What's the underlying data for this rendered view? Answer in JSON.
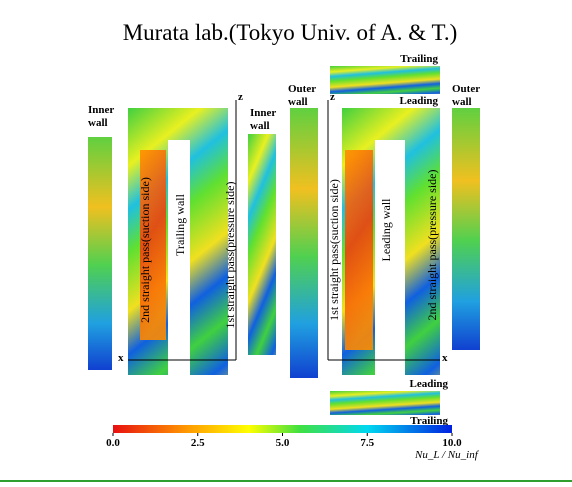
{
  "title": "Murata lab.(Tokyo Univ. of A. & T.)",
  "trailing_side": {
    "inner_wall_label": [
      "Inner",
      "wall"
    ],
    "pass2_label": "2nd straight pass(suction side)",
    "wall_label": "Trailing wall",
    "pass1_label": "1st straight pass(pressure side)",
    "axis_z": "z",
    "axis_x": "x",
    "middle_inner_wall_label": [
      "Inner",
      "wall"
    ],
    "outer_wall_label": [
      "Outer",
      "wall"
    ]
  },
  "leading_side": {
    "top_strip_upper": "Trailing",
    "top_strip_lower": "Leading",
    "axis_z": "z",
    "axis_x": "x",
    "pass1_label": "1st straight pass(suction side)",
    "wall_label": "Leading wall",
    "pass2_label": "2nd straight pass(pressure side)",
    "outer_wall_label": [
      "Outer",
      "wall"
    ],
    "bottom_strip_upper": "Leading",
    "bottom_strip_lower": "Trailing"
  },
  "colorbar": {
    "label": "Nu_L / Nu_inf",
    "ticks": [
      {
        "value": 0,
        "label": "0.0"
      },
      {
        "value": 2.5,
        "label": "2.5"
      },
      {
        "value": 5,
        "label": "5.0"
      },
      {
        "value": 7.5,
        "label": "7.5"
      },
      {
        "value": 10,
        "label": "10.0"
      }
    ]
  }
}
